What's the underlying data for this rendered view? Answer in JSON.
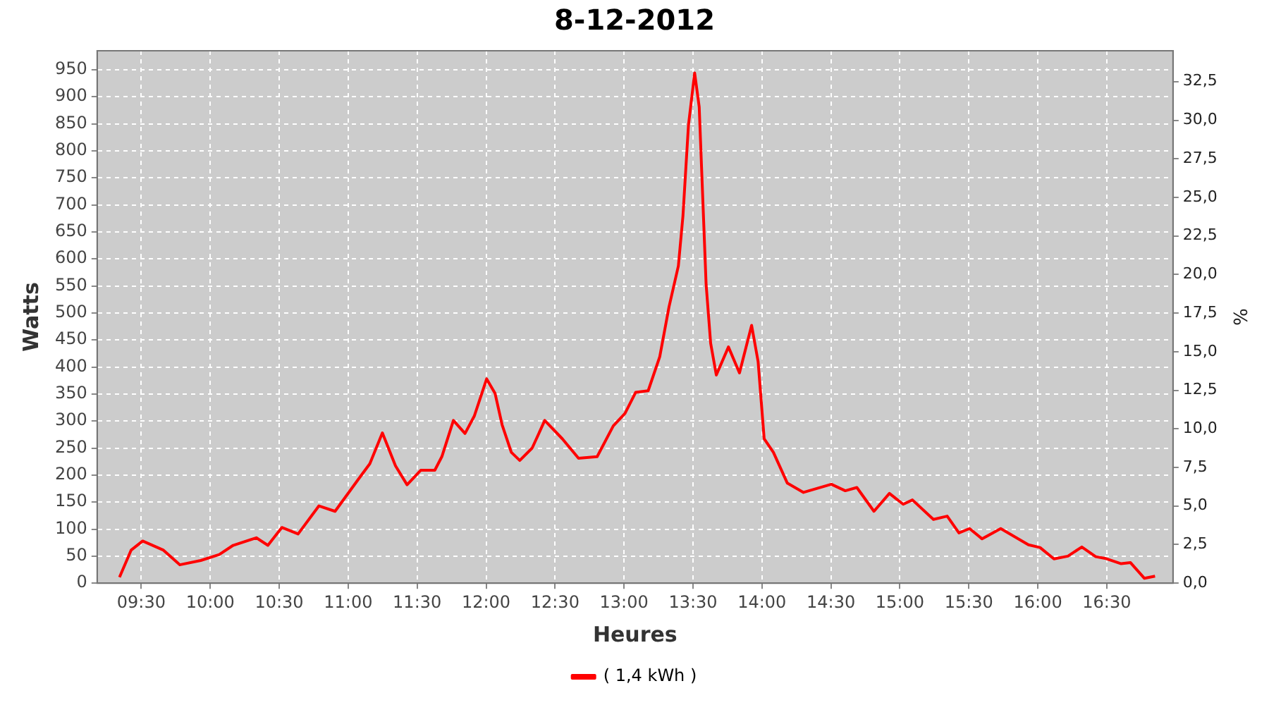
{
  "chart_data": {
    "type": "line",
    "title": "8-12-2012",
    "xlabel": "Heures",
    "ylabel": "Watts",
    "y2label": "%",
    "xlim": [
      9.18,
      16.98
    ],
    "xticks": [
      {
        "value": 9.5,
        "label": "09:30"
      },
      {
        "value": 10,
        "label": "10:00"
      },
      {
        "value": 10.5,
        "label": "10:30"
      },
      {
        "value": 11,
        "label": "11:00"
      },
      {
        "value": 11.5,
        "label": "11:30"
      },
      {
        "value": 12,
        "label": "12:00"
      },
      {
        "value": 12.5,
        "label": "12:30"
      },
      {
        "value": 13,
        "label": "13:00"
      },
      {
        "value": 13.5,
        "label": "13:30"
      },
      {
        "value": 14,
        "label": "14:00"
      },
      {
        "value": 14.5,
        "label": "14:30"
      },
      {
        "value": 15,
        "label": "15:00"
      },
      {
        "value": 15.5,
        "label": "15:30"
      },
      {
        "value": 16,
        "label": "16:00"
      },
      {
        "value": 16.5,
        "label": "16:30"
      }
    ],
    "ylim": [
      0,
      985
    ],
    "yticks": [
      0,
      50,
      100,
      150,
      200,
      250,
      300,
      350,
      400,
      450,
      500,
      550,
      600,
      650,
      700,
      750,
      800,
      850,
      900,
      950
    ],
    "y2lim": [
      0,
      34.5
    ],
    "y2ticks": [
      {
        "value": 0,
        "label": "0,0"
      },
      {
        "value": 2.5,
        "label": "2,5"
      },
      {
        "value": 5,
        "label": "5,0"
      },
      {
        "value": 7.5,
        "label": "7,5"
      },
      {
        "value": 10,
        "label": "10,0"
      },
      {
        "value": 12.5,
        "label": "12,5"
      },
      {
        "value": 15,
        "label": "15,0"
      },
      {
        "value": 17.5,
        "label": "17,5"
      },
      {
        "value": 20,
        "label": "20,0"
      },
      {
        "value": 22.5,
        "label": "22,5"
      },
      {
        "value": 25,
        "label": "25,0"
      },
      {
        "value": 27.5,
        "label": "27,5"
      },
      {
        "value": 30,
        "label": "30,0"
      },
      {
        "value": 32.5,
        "label": "32,5"
      }
    ],
    "grid": true,
    "legend": "bottom",
    "marker": "none",
    "line_style": "solid",
    "x": [
      9.342,
      9.426,
      9.51,
      9.661,
      9.779,
      9.931,
      10.065,
      10.166,
      10.334,
      10.418,
      10.519,
      10.637,
      10.788,
      10.905,
      11.073,
      11.157,
      11.248,
      11.343,
      11.427,
      11.527,
      11.628,
      11.679,
      11.763,
      11.847,
      11.914,
      12.004,
      12.065,
      12.116,
      12.183,
      12.244,
      12.334,
      12.425,
      12.553,
      12.67,
      12.805,
      12.922,
      13.007,
      13.084,
      13.175,
      13.259,
      13.326,
      13.394,
      13.427,
      13.467,
      13.512,
      13.545,
      13.595,
      13.628,
      13.669,
      13.757,
      13.837,
      13.925,
      13.972,
      14.016,
      14.083,
      14.184,
      14.301,
      14.503,
      14.604,
      14.688,
      14.812,
      14.924,
      15.024,
      15.091,
      15.243,
      15.343,
      15.428,
      15.505,
      15.596,
      15.731,
      15.932,
      16.016,
      16.117,
      16.218,
      16.319,
      16.42,
      16.487,
      16.604,
      16.672,
      16.773,
      16.85
    ],
    "series": [
      {
        "name": "( 1,4 kWh )",
        "color": "#ff0000",
        "values": [
          11,
          61,
          78,
          61,
          34,
          42,
          53,
          70,
          84,
          70,
          103,
          91,
          143,
          133,
          192,
          221,
          278,
          217,
          182,
          209,
          209,
          234,
          301,
          277,
          309,
          378,
          351,
          293,
          242,
          227,
          250,
          301,
          267,
          231,
          234,
          291,
          314,
          353,
          356,
          419,
          511,
          587,
          679,
          847,
          944,
          881,
          553,
          444,
          385,
          437,
          389,
          477,
          410,
          267,
          242,
          185,
          168,
          183,
          171,
          177,
          133,
          166,
          146,
          154,
          118,
          124,
          93,
          101,
          82,
          101,
          71,
          66,
          45,
          50,
          67,
          49,
          46,
          36,
          38,
          9,
          13
        ]
      }
    ]
  }
}
